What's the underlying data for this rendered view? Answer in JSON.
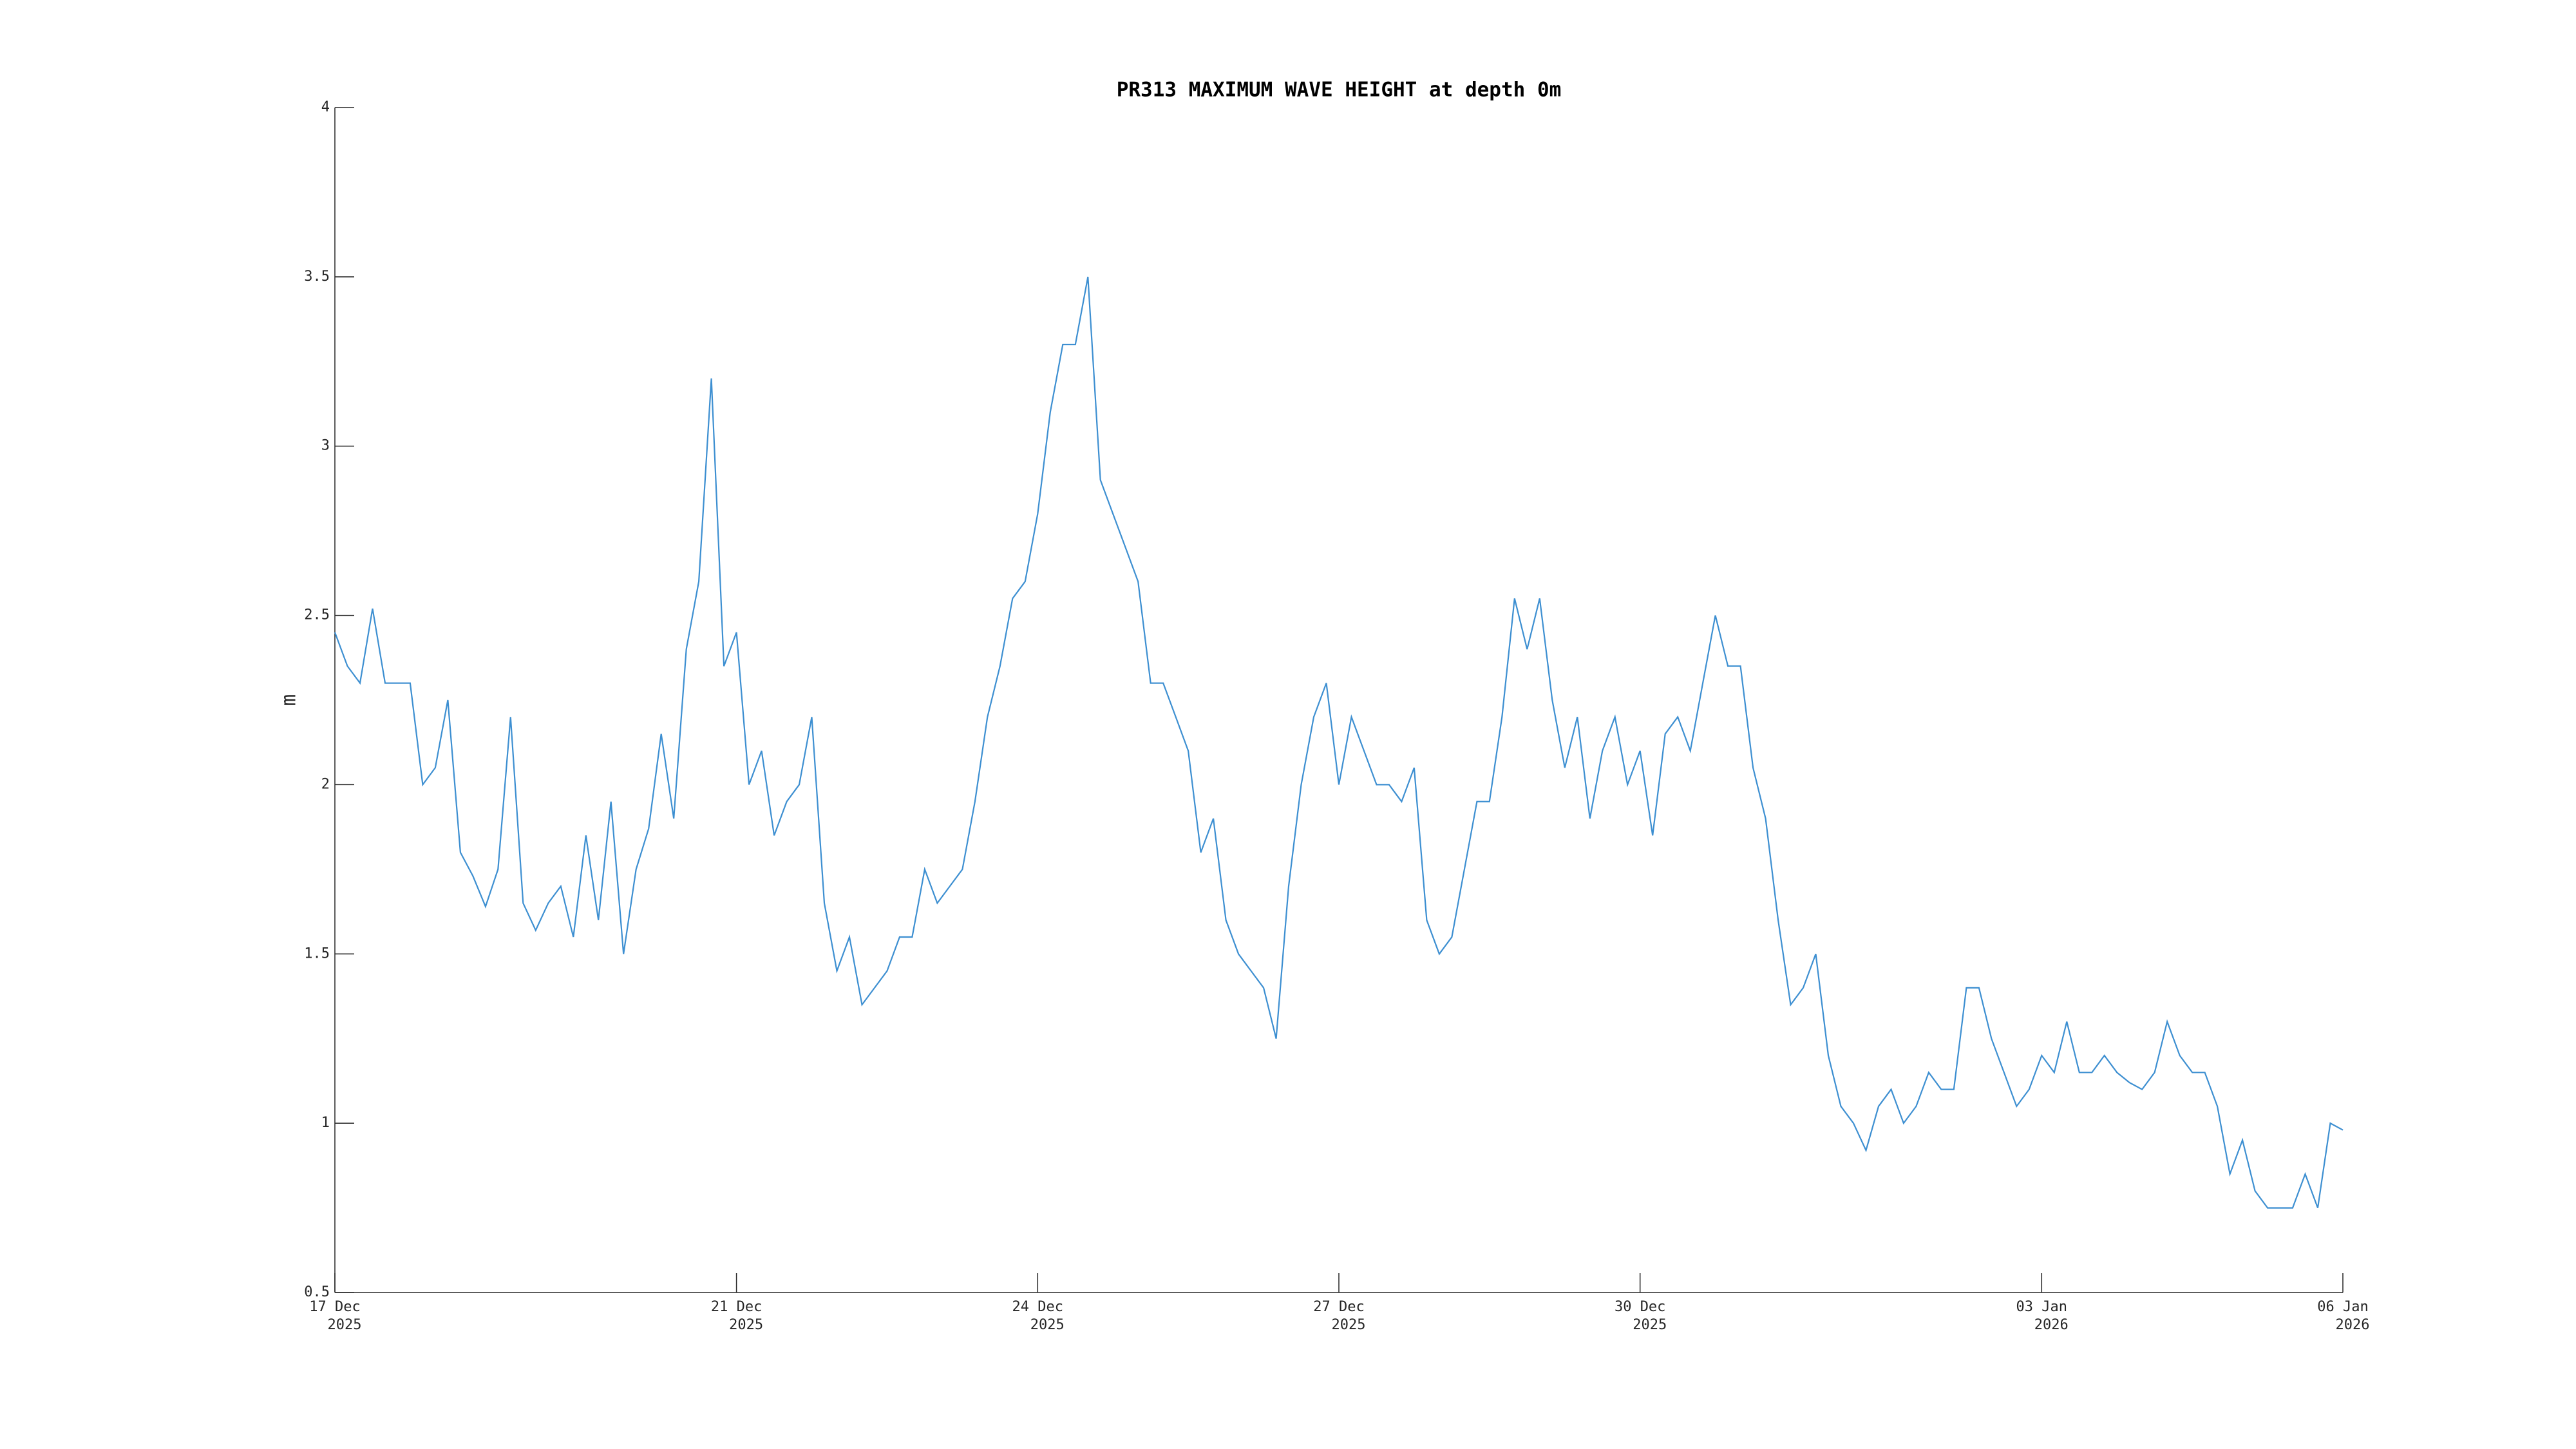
{
  "chart_data": {
    "type": "line",
    "title": "PR313 MAXIMUM WAVE HEIGHT at depth 0m",
    "y_label": "m",
    "x": [
      "2025-12-17T00:00",
      "2025-12-17T03:00",
      "2025-12-17T06:00",
      "2025-12-17T09:00",
      "2025-12-17T12:00",
      "2025-12-17T15:00",
      "2025-12-17T18:00",
      "2025-12-17T21:00",
      "2025-12-18T00:00",
      "2025-12-18T03:00",
      "2025-12-18T06:00",
      "2025-12-18T09:00",
      "2025-12-18T12:00",
      "2025-12-18T15:00",
      "2025-12-18T18:00",
      "2025-12-18T21:00",
      "2025-12-19T00:00",
      "2025-12-19T03:00",
      "2025-12-19T06:00",
      "2025-12-19T09:00",
      "2025-12-19T12:00",
      "2025-12-19T15:00",
      "2025-12-19T18:00",
      "2025-12-19T21:00",
      "2025-12-20T00:00",
      "2025-12-20T03:00",
      "2025-12-20T06:00",
      "2025-12-20T09:00",
      "2025-12-20T12:00",
      "2025-12-20T15:00",
      "2025-12-20T18:00",
      "2025-12-20T21:00",
      "2025-12-21T00:00",
      "2025-12-21T03:00",
      "2025-12-21T06:00",
      "2025-12-21T09:00",
      "2025-12-21T12:00",
      "2025-12-21T15:00",
      "2025-12-21T18:00",
      "2025-12-21T21:00",
      "2025-12-22T00:00",
      "2025-12-22T03:00",
      "2025-12-22T06:00",
      "2025-12-22T09:00",
      "2025-12-22T12:00",
      "2025-12-22T15:00",
      "2025-12-22T18:00",
      "2025-12-22T21:00",
      "2025-12-23T00:00",
      "2025-12-23T03:00",
      "2025-12-23T06:00",
      "2025-12-23T09:00",
      "2025-12-23T12:00",
      "2025-12-23T15:00",
      "2025-12-23T18:00",
      "2025-12-23T21:00",
      "2025-12-24T00:00",
      "2025-12-24T03:00",
      "2025-12-24T06:00",
      "2025-12-24T09:00",
      "2025-12-24T12:00",
      "2025-12-24T15:00",
      "2025-12-24T18:00",
      "2025-12-24T21:00",
      "2025-12-25T00:00",
      "2025-12-25T03:00",
      "2025-12-25T06:00",
      "2025-12-25T09:00",
      "2025-12-25T12:00",
      "2025-12-25T15:00",
      "2025-12-25T18:00",
      "2025-12-25T21:00",
      "2025-12-26T00:00",
      "2025-12-26T03:00",
      "2025-12-26T06:00",
      "2025-12-26T09:00",
      "2025-12-26T12:00",
      "2025-12-26T15:00",
      "2025-12-26T18:00",
      "2025-12-26T21:00",
      "2025-12-27T00:00",
      "2025-12-27T03:00",
      "2025-12-27T06:00",
      "2025-12-27T09:00",
      "2025-12-27T12:00",
      "2025-12-27T15:00",
      "2025-12-27T18:00",
      "2025-12-27T21:00",
      "2025-12-28T00:00",
      "2025-12-28T03:00",
      "2025-12-28T06:00",
      "2025-12-28T09:00",
      "2025-12-28T12:00",
      "2025-12-28T15:00",
      "2025-12-28T18:00",
      "2025-12-28T21:00",
      "2025-12-29T00:00",
      "2025-12-29T03:00",
      "2025-12-29T06:00",
      "2025-12-29T09:00",
      "2025-12-29T12:00",
      "2025-12-29T15:00",
      "2025-12-29T18:00",
      "2025-12-29T21:00",
      "2025-12-30T00:00",
      "2025-12-30T03:00",
      "2025-12-30T06:00",
      "2025-12-30T09:00",
      "2025-12-30T12:00",
      "2025-12-30T15:00",
      "2025-12-30T18:00",
      "2025-12-30T21:00",
      "2025-12-31T00:00",
      "2025-12-31T03:00",
      "2025-12-31T06:00",
      "2025-12-31T09:00",
      "2025-12-31T12:00",
      "2025-12-31T15:00",
      "2025-12-31T18:00",
      "2025-12-31T21:00",
      "2026-01-01T00:00",
      "2026-01-01T03:00",
      "2026-01-01T06:00",
      "2026-01-01T09:00",
      "2026-01-01T12:00",
      "2026-01-01T15:00",
      "2026-01-01T18:00",
      "2026-01-01T21:00",
      "2026-01-02T00:00",
      "2026-01-02T03:00",
      "2026-01-02T06:00",
      "2026-01-02T09:00",
      "2026-01-02T12:00",
      "2026-01-02T15:00",
      "2026-01-02T18:00",
      "2026-01-02T21:00",
      "2026-01-03T00:00",
      "2026-01-03T03:00",
      "2026-01-03T06:00",
      "2026-01-03T09:00",
      "2026-01-03T12:00",
      "2026-01-03T15:00",
      "2026-01-03T18:00",
      "2026-01-03T21:00",
      "2026-01-04T00:00",
      "2026-01-04T03:00",
      "2026-01-04T06:00",
      "2026-01-04T09:00",
      "2026-01-04T12:00",
      "2026-01-04T15:00",
      "2026-01-04T18:00",
      "2026-01-04T21:00",
      "2026-01-05T00:00",
      "2026-01-05T03:00",
      "2026-01-05T06:00",
      "2026-01-05T09:00",
      "2026-01-05T12:00",
      "2026-01-05T15:00",
      "2026-01-05T18:00",
      "2026-01-05T21:00",
      "2026-01-06T00:00"
    ],
    "series": [
      {
        "color": "#3d8fd1",
        "values": [
          2.45,
          2.35,
          2.3,
          2.52,
          2.3,
          2.3,
          2.3,
          2.0,
          2.05,
          2.25,
          1.8,
          1.73,
          1.64,
          1.75,
          2.2,
          1.65,
          1.57,
          1.65,
          1.7,
          1.55,
          1.85,
          1.6,
          1.95,
          1.5,
          1.75,
          1.87,
          2.15,
          1.9,
          2.4,
          2.6,
          3.2,
          2.35,
          2.45,
          2.0,
          2.1,
          1.85,
          1.95,
          2.0,
          2.2,
          1.65,
          1.45,
          1.55,
          1.35,
          1.4,
          1.45,
          1.55,
          1.55,
          1.75,
          1.65,
          1.7,
          1.75,
          1.95,
          2.2,
          2.35,
          2.55,
          2.6,
          2.8,
          3.1,
          3.3,
          3.3,
          3.5,
          2.9,
          2.8,
          2.7,
          2.6,
          2.3,
          2.3,
          2.2,
          2.1,
          1.8,
          1.9,
          1.6,
          1.5,
          1.45,
          1.4,
          1.25,
          1.7,
          2.0,
          2.2,
          2.3,
          2.0,
          2.2,
          2.1,
          2.0,
          2.0,
          1.95,
          2.05,
          1.6,
          1.5,
          1.55,
          1.75,
          1.95,
          1.95,
          2.2,
          2.55,
          2.4,
          2.55,
          2.25,
          2.05,
          2.2,
          1.9,
          2.1,
          2.2,
          2.0,
          2.1,
          1.85,
          2.15,
          2.2,
          2.1,
          2.3,
          2.5,
          2.35,
          2.35,
          2.05,
          1.9,
          1.6,
          1.35,
          1.4,
          1.5,
          1.2,
          1.05,
          1.0,
          0.92,
          1.05,
          1.1,
          1.0,
          1.05,
          1.15,
          1.1,
          1.1,
          1.4,
          1.4,
          1.25,
          1.15,
          1.05,
          1.1,
          1.2,
          1.15,
          1.3,
          1.15,
          1.15,
          1.2,
          1.15,
          1.12,
          1.1,
          1.15,
          1.3,
          1.2,
          1.15,
          1.15,
          1.05,
          0.85,
          0.95,
          0.8,
          0.75,
          0.75,
          0.75,
          0.85,
          0.75,
          1.0,
          0.98
        ]
      }
    ],
    "xlim": [
      "2025-12-17T00:00",
      "2026-01-06T00:00"
    ],
    "xticks": [
      {
        "value": "2025-12-17T00:00",
        "label": [
          "17 Dec",
          "2025"
        ]
      },
      {
        "value": "2025-12-21T00:00",
        "label": [
          "21 Dec",
          "2025"
        ]
      },
      {
        "value": "2025-12-24T00:00",
        "label": [
          "24 Dec",
          "2025"
        ]
      },
      {
        "value": "2025-12-27T00:00",
        "label": [
          "27 Dec",
          "2025"
        ]
      },
      {
        "value": "2025-12-30T00:00",
        "label": [
          "30 Dec",
          "2025"
        ]
      },
      {
        "value": "2026-01-03T00:00",
        "label": [
          "03 Jan",
          "2026"
        ]
      },
      {
        "value": "2026-01-06T00:00",
        "label": [
          "06 Jan",
          "2026"
        ]
      }
    ],
    "ylim": [
      0.5,
      4
    ],
    "yticks": [
      0.5,
      1,
      1.5,
      2,
      2.5,
      3,
      3.5,
      4
    ]
  }
}
